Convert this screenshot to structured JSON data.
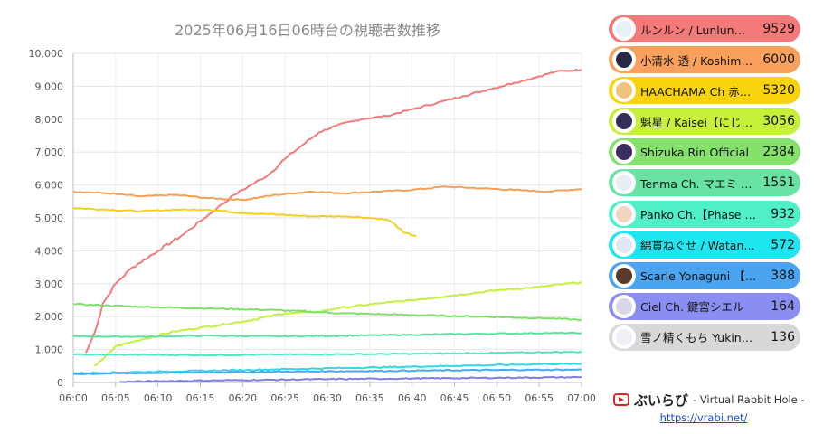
{
  "chart_data": {
    "type": "line",
    "title": "2025年06月16日06時台の視聴者数推移",
    "xlabel": "",
    "ylabel": "",
    "x_ticks": [
      "06:00",
      "06:05",
      "06:10",
      "06:15",
      "06:20",
      "06:25",
      "06:30",
      "06:35",
      "06:40",
      "06:45",
      "06:50",
      "06:55",
      "07:00"
    ],
    "xlim": [
      0,
      60
    ],
    "ylim": [
      0,
      10000
    ],
    "y_ticks": [
      "0",
      "1,000",
      "2,000",
      "3,000",
      "4,000",
      "5,000",
      "6,000",
      "7,000",
      "8,000",
      "9,000",
      "10,000"
    ],
    "grid": true,
    "series": [
      {
        "name": "ルンルン / Lunlun【にじさんじ】",
        "color": "#f47a7a",
        "points": [
          [
            1.5,
            900
          ],
          [
            2.5,
            1500
          ],
          [
            3.5,
            2400
          ],
          [
            5,
            3000
          ],
          [
            7,
            3500
          ],
          [
            10,
            4000
          ],
          [
            13,
            4500
          ],
          [
            15,
            4900
          ],
          [
            17,
            5300
          ],
          [
            19,
            5700
          ],
          [
            21,
            6000
          ],
          [
            23,
            6300
          ],
          [
            25,
            6800
          ],
          [
            27,
            7200
          ],
          [
            29,
            7600
          ],
          [
            31,
            7800
          ],
          [
            34,
            8000
          ],
          [
            37,
            8100
          ],
          [
            40,
            8300
          ],
          [
            43,
            8500
          ],
          [
            46,
            8700
          ],
          [
            49,
            8900
          ],
          [
            52,
            9100
          ],
          [
            55,
            9300
          ],
          [
            57,
            9450
          ],
          [
            60,
            9500
          ]
        ],
        "label": "ルンルン / Lunlun…",
        "value": "9529",
        "bg": "#f47a7a",
        "avatar": "#e9eef8"
      },
      {
        "name": "小清水 透 / Koshimizu Toru",
        "color": "#f5a05a",
        "points": [
          [
            0,
            5800
          ],
          [
            4,
            5750
          ],
          [
            8,
            5650
          ],
          [
            12,
            5700
          ],
          [
            16,
            5600
          ],
          [
            20,
            5550
          ],
          [
            24,
            5700
          ],
          [
            28,
            5800
          ],
          [
            32,
            5750
          ],
          [
            36,
            5800
          ],
          [
            40,
            5850
          ],
          [
            44,
            5950
          ],
          [
            48,
            5900
          ],
          [
            52,
            5850
          ],
          [
            56,
            5800
          ],
          [
            60,
            5880
          ]
        ],
        "label": "小清水 透 / Koshim…",
        "value": "6000",
        "bg": "#f8a05c",
        "avatar": "#2a2a48"
      },
      {
        "name": "HAACHAMA Ch 赤井はあと",
        "color": "#f5d020",
        "points": [
          [
            0,
            5300
          ],
          [
            4,
            5250
          ],
          [
            8,
            5200
          ],
          [
            12,
            5250
          ],
          [
            16,
            5250
          ],
          [
            20,
            5150
          ],
          [
            24,
            5100
          ],
          [
            28,
            5050
          ],
          [
            32,
            5050
          ],
          [
            35,
            5000
          ],
          [
            37,
            4950
          ],
          [
            38,
            4800
          ],
          [
            39,
            4550
          ],
          [
            40.5,
            4450
          ]
        ],
        "label": "HAACHAMA Ch 赤…",
        "value": "5320",
        "bg": "#f9d40d",
        "avatar": "#f1c27a"
      },
      {
        "name": "魁星 / Kaisei【にじさんじ】",
        "color": "#c5ef3a",
        "points": [
          [
            2.5,
            500
          ],
          [
            3.5,
            700
          ],
          [
            5,
            1100
          ],
          [
            8,
            1300
          ],
          [
            12,
            1550
          ],
          [
            16,
            1700
          ],
          [
            20,
            1850
          ],
          [
            25,
            2100
          ],
          [
            29,
            2150
          ],
          [
            31,
            2250
          ],
          [
            36,
            2400
          ],
          [
            40,
            2500
          ],
          [
            45,
            2650
          ],
          [
            50,
            2800
          ],
          [
            55,
            2900
          ],
          [
            60,
            3050
          ]
        ],
        "label": "魁星 / Kaisei【にじ…",
        "value": "3056",
        "bg": "#c6f03a",
        "avatar": "#30305a"
      },
      {
        "name": "Shizuka Rin Official",
        "color": "#7ee06a",
        "points": [
          [
            0,
            2380
          ],
          [
            8,
            2300
          ],
          [
            16,
            2250
          ],
          [
            24,
            2200
          ],
          [
            32,
            2100
          ],
          [
            40,
            2050
          ],
          [
            48,
            2000
          ],
          [
            56,
            1950
          ],
          [
            60,
            1900
          ]
        ],
        "label": "Shizuka Rin Official",
        "value": "2384",
        "bg": "#84e16c",
        "avatar": "#3a2e5e"
      },
      {
        "name": "Tenma Ch. マエミ Maemi",
        "color": "#5ee0a0",
        "points": [
          [
            0,
            1400
          ],
          [
            8,
            1390
          ],
          [
            16,
            1420
          ],
          [
            24,
            1400
          ],
          [
            32,
            1420
          ],
          [
            40,
            1450
          ],
          [
            48,
            1480
          ],
          [
            56,
            1500
          ],
          [
            60,
            1500
          ]
        ],
        "label": "Tenma Ch. マエミ …",
        "value": "1551",
        "bg": "#69e3a3",
        "avatar": "#e8eef4"
      },
      {
        "name": "Panko Ch.【Phase Connect】",
        "color": "#4fe8c4",
        "points": [
          [
            0,
            850
          ],
          [
            8,
            840
          ],
          [
            16,
            830
          ],
          [
            24,
            850
          ],
          [
            32,
            860
          ],
          [
            40,
            870
          ],
          [
            48,
            890
          ],
          [
            56,
            920
          ],
          [
            60,
            930
          ]
        ],
        "label": "Panko Ch.【Phase …",
        "value": "932",
        "bg": "#4ff0c8",
        "avatar": "#f3d6c2"
      },
      {
        "name": "綿貫ねぐせ / Watanuki Neguse",
        "color": "#30d8e8",
        "points": [
          [
            0,
            280
          ],
          [
            8,
            320
          ],
          [
            16,
            360
          ],
          [
            24,
            400
          ],
          [
            32,
            440
          ],
          [
            40,
            480
          ],
          [
            48,
            520
          ],
          [
            56,
            560
          ],
          [
            60,
            560
          ]
        ],
        "label": "綿貫ねぐせ / Watan…",
        "value": "572",
        "bg": "#1ee5ee",
        "avatar": "#e0e8f4"
      },
      {
        "name": "Scarle Yonaguni 【Phase Connect】",
        "color": "#4aa8f0",
        "points": [
          [
            0,
            260
          ],
          [
            10,
            290
          ],
          [
            20,
            320
          ],
          [
            30,
            340
          ],
          [
            40,
            360
          ],
          [
            50,
            380
          ],
          [
            60,
            390
          ]
        ],
        "label": "Scarle Yonaguni 【…",
        "value": "388",
        "bg": "#4aa4f0",
        "avatar": "#5a3a2a"
      },
      {
        "name": "Ciel Ch. 鍵宮シエル",
        "color": "#7a80e0",
        "points": [
          [
            5.5,
            20
          ],
          [
            10,
            40
          ],
          [
            20,
            70
          ],
          [
            30,
            100
          ],
          [
            40,
            120
          ],
          [
            50,
            140
          ],
          [
            60,
            160
          ]
        ],
        "label": "Ciel Ch. 鍵宮シエル",
        "value": "164",
        "bg": "#8a8ef0",
        "avatar": "#d8d8e8"
      },
      {
        "name": "雪ノ精くもち Yukinosei Kumochi",
        "color": "#bfbfbf",
        "points": [],
        "label": "雪ノ精くもち Yukin…",
        "value": "136",
        "bg": "#d8d8d8",
        "avatar": "#eef0f6"
      }
    ]
  },
  "brand": {
    "name": "ぶいらび",
    "subtitle": "- Virtual Rabbit Hole -",
    "url": "https://vrabi.net/",
    "logo_color": "#d8262c"
  },
  "legend_items": [
    {
      "label": "ルンルン / Lunlun…",
      "value": "9529"
    },
    {
      "label": "小清水 透 / Koshim…",
      "value": "6000"
    },
    {
      "label": "HAACHAMA Ch 赤…",
      "value": "5320"
    },
    {
      "label": "魁星 / Kaisei【にじ…",
      "value": "3056"
    },
    {
      "label": "Shizuka Rin Official",
      "value": "2384"
    },
    {
      "label": "Tenma Ch. マエミ …",
      "value": "1551"
    },
    {
      "label": "Panko Ch.【Phase …",
      "value": "932"
    },
    {
      "label": "綿貫ねぐせ / Watan…",
      "value": "572"
    },
    {
      "label": "Scarle Yonaguni 【…",
      "value": "388"
    },
    {
      "label": "Ciel Ch. 鍵宮シエル",
      "value": "164"
    },
    {
      "label": "雪ノ精くもち Yukin…",
      "value": "136"
    }
  ]
}
